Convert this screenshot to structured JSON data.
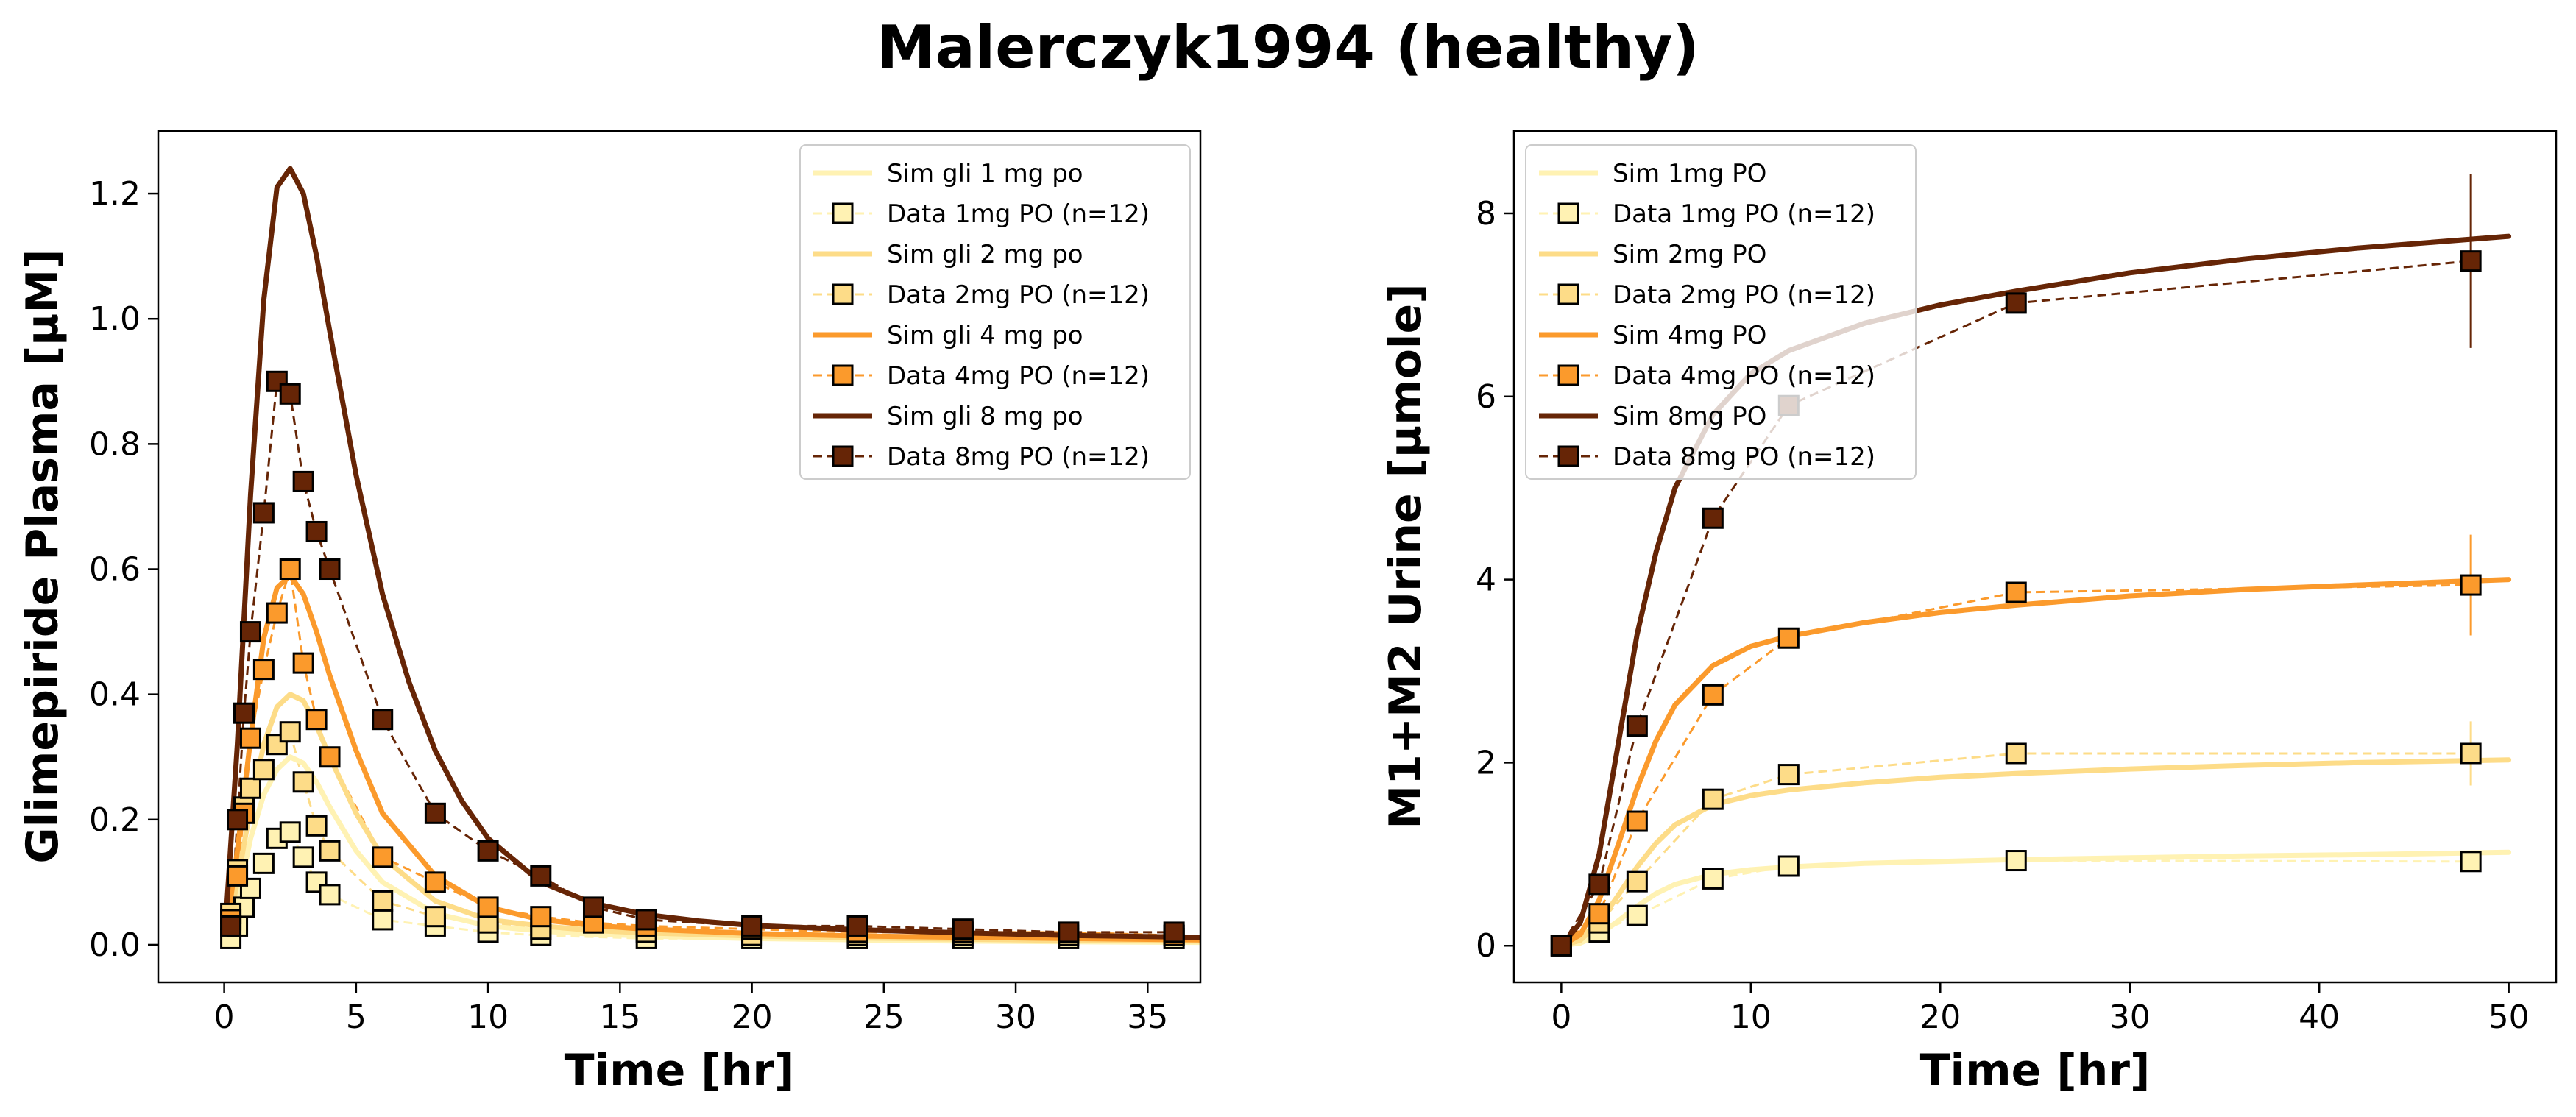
{
  "figure": {
    "title": "Malerczyk1994 (healthy)"
  },
  "chart_data": [
    {
      "type": "line",
      "xlabel": "Time [hr]",
      "ylabel": "Glimepiride Plasma [µM]",
      "xlim": [
        -2.5,
        37
      ],
      "ylim": [
        -0.06,
        1.3
      ],
      "xticks": [
        0,
        5,
        10,
        15,
        20,
        25,
        30,
        35
      ],
      "yticks": [
        0.0,
        0.2,
        0.4,
        0.6,
        0.8,
        1.0,
        1.2
      ],
      "legend_position": "upper right",
      "legend": [
        {
          "label": "Sim gli 1 mg po",
          "kind": "sim",
          "color": "#fff2b3"
        },
        {
          "label": "Data 1mg PO (n=12)",
          "kind": "data",
          "color": "#fff2b3"
        },
        {
          "label": "Sim gli 2 mg po",
          "kind": "sim",
          "color": "#fddc88"
        },
        {
          "label": "Data 2mg PO (n=12)",
          "kind": "data",
          "color": "#fddc88"
        },
        {
          "label": "Sim gli 4 mg po",
          "kind": "sim",
          "color": "#fb9a2c"
        },
        {
          "label": "Data 4mg PO (n=12)",
          "kind": "data",
          "color": "#fb9a2c"
        },
        {
          "label": "Sim gli 8 mg po",
          "kind": "sim",
          "color": "#662506"
        },
        {
          "label": "Data 8mg PO (n=12)",
          "kind": "data",
          "color": "#662506"
        }
      ],
      "sims": [
        {
          "name": "Sim gli 1 mg po",
          "color": "#fff2b3",
          "x": [
            0,
            0.5,
            1,
            1.5,
            2,
            2.5,
            3,
            3.5,
            4,
            5,
            6,
            8,
            10,
            12,
            14,
            16,
            20,
            24,
            28,
            32,
            37
          ],
          "y": [
            0,
            0.07,
            0.17,
            0.24,
            0.28,
            0.3,
            0.29,
            0.26,
            0.22,
            0.15,
            0.1,
            0.05,
            0.03,
            0.022,
            0.017,
            0.014,
            0.01,
            0.008,
            0.006,
            0.005,
            0.004
          ]
        },
        {
          "name": "Sim gli 2 mg po",
          "color": "#fddc88",
          "x": [
            0,
            0.5,
            1,
            1.5,
            2,
            2.5,
            3,
            3.5,
            4,
            5,
            6,
            8,
            10,
            12,
            14,
            16,
            20,
            24,
            28,
            32,
            37
          ],
          "y": [
            0,
            0.1,
            0.22,
            0.32,
            0.38,
            0.4,
            0.39,
            0.35,
            0.3,
            0.21,
            0.14,
            0.07,
            0.04,
            0.03,
            0.023,
            0.019,
            0.014,
            0.011,
            0.009,
            0.007,
            0.006
          ]
        },
        {
          "name": "Sim gli 4 mg po",
          "color": "#fb9a2c",
          "x": [
            0,
            0.5,
            1,
            1.5,
            2,
            2.5,
            3,
            3.5,
            4,
            5,
            6,
            8,
            10,
            12,
            14,
            16,
            20,
            24,
            28,
            32,
            37
          ],
          "y": [
            0,
            0.15,
            0.33,
            0.49,
            0.57,
            0.59,
            0.56,
            0.5,
            0.43,
            0.31,
            0.21,
            0.11,
            0.06,
            0.04,
            0.031,
            0.025,
            0.018,
            0.014,
            0.012,
            0.01,
            0.008
          ]
        },
        {
          "name": "Sim gli 8 mg po",
          "color": "#662506",
          "x": [
            0,
            0.5,
            1,
            1.5,
            2,
            2.5,
            3,
            3.5,
            4,
            5,
            6,
            7,
            8,
            9,
            10,
            12,
            14,
            16,
            18,
            20,
            24,
            28,
            32,
            37
          ],
          "y": [
            0,
            0.32,
            0.72,
            1.03,
            1.21,
            1.24,
            1.2,
            1.1,
            0.98,
            0.75,
            0.56,
            0.42,
            0.31,
            0.23,
            0.17,
            0.1,
            0.066,
            0.048,
            0.038,
            0.031,
            0.024,
            0.019,
            0.015,
            0.012
          ]
        }
      ],
      "data": [
        {
          "name": "Data 1mg PO (n=12)",
          "color": "#fff2b3",
          "x": [
            0.25,
            0.5,
            0.75,
            1,
            1.5,
            2,
            2.5,
            3,
            3.5,
            4,
            6,
            8,
            10,
            12,
            16,
            20,
            24,
            28,
            32,
            36
          ],
          "y": [
            0.01,
            0.03,
            0.06,
            0.09,
            0.13,
            0.17,
            0.18,
            0.14,
            0.1,
            0.08,
            0.04,
            0.03,
            0.02,
            0.015,
            0.01,
            0.01,
            0.01,
            0.01,
            0.01,
            0.01
          ]
        },
        {
          "name": "Data 2mg PO (n=12)",
          "color": "#fddc88",
          "x": [
            0.25,
            0.5,
            0.75,
            1,
            1.5,
            2,
            2.5,
            3,
            3.5,
            4,
            6,
            8,
            10,
            12,
            16,
            20,
            24,
            28,
            32,
            36
          ],
          "y": [
            0.05,
            0.12,
            0.22,
            0.25,
            0.28,
            0.32,
            0.34,
            0.26,
            0.19,
            0.15,
            0.07,
            0.045,
            0.035,
            0.025,
            0.02,
            0.015,
            0.015,
            0.015,
            0.015,
            0.015
          ]
        },
        {
          "name": "Data 4mg PO (n=12)",
          "color": "#fb9a2c",
          "x": [
            0.25,
            0.5,
            0.75,
            1,
            1.5,
            2,
            2.5,
            3,
            3.5,
            4,
            6,
            8,
            10,
            12,
            14,
            16,
            20,
            24,
            28,
            32,
            36
          ],
          "y": [
            0.04,
            0.11,
            0.21,
            0.33,
            0.44,
            0.53,
            0.6,
            0.45,
            0.36,
            0.3,
            0.14,
            0.1,
            0.06,
            0.045,
            0.035,
            0.03,
            0.025,
            0.02,
            0.02,
            0.02,
            0.015
          ]
        },
        {
          "name": "Data 8mg PO (n=12)",
          "color": "#662506",
          "x": [
            0.25,
            0.5,
            0.75,
            1,
            1.5,
            2,
            2.5,
            3,
            3.5,
            4,
            6,
            8,
            10,
            12,
            14,
            16,
            20,
            24,
            28,
            32,
            36
          ],
          "y": [
            0.03,
            0.2,
            0.37,
            0.5,
            0.69,
            0.9,
            0.88,
            0.74,
            0.66,
            0.6,
            0.36,
            0.21,
            0.15,
            0.11,
            0.06,
            0.04,
            0.03,
            0.03,
            0.025,
            0.02,
            0.02
          ]
        }
      ]
    },
    {
      "type": "line",
      "xlabel": "Time [hr]",
      "ylabel": "M1+M2 Urine [µmole]",
      "xlim": [
        -2.5,
        52.5
      ],
      "ylim": [
        -0.4,
        8.9
      ],
      "xticks": [
        0,
        10,
        20,
        30,
        40,
        50
      ],
      "yticks": [
        0,
        2,
        4,
        6,
        8
      ],
      "legend_position": "upper left",
      "legend": [
        {
          "label": "Sim 1mg PO",
          "kind": "sim",
          "color": "#fff2b3"
        },
        {
          "label": "Data 1mg PO (n=12)",
          "kind": "data",
          "color": "#fff2b3"
        },
        {
          "label": "Sim 2mg PO",
          "kind": "sim",
          "color": "#fddc88"
        },
        {
          "label": "Data 2mg PO (n=12)",
          "kind": "data",
          "color": "#fddc88"
        },
        {
          "label": "Sim 4mg PO",
          "kind": "sim",
          "color": "#fb9a2c"
        },
        {
          "label": "Data 4mg PO (n=12)",
          "kind": "data",
          "color": "#fb9a2c"
        },
        {
          "label": "Sim 8mg PO",
          "kind": "sim",
          "color": "#662506"
        },
        {
          "label": "Data 8mg PO (n=12)",
          "kind": "data",
          "color": "#662506"
        }
      ],
      "sims": [
        {
          "name": "Sim 1mg PO",
          "color": "#fff2b3",
          "x": [
            0,
            1,
            2,
            3,
            4,
            5,
            6,
            8,
            10,
            12,
            16,
            20,
            24,
            30,
            36,
            42,
            50
          ],
          "y": [
            0,
            0.03,
            0.12,
            0.27,
            0.43,
            0.57,
            0.67,
            0.78,
            0.83,
            0.86,
            0.9,
            0.92,
            0.94,
            0.96,
            0.98,
            0.995,
            1.02
          ]
        },
        {
          "name": "Sim 2mg PO",
          "color": "#fddc88",
          "x": [
            0,
            1,
            2,
            3,
            4,
            5,
            6,
            8,
            10,
            12,
            16,
            20,
            24,
            30,
            36,
            42,
            50
          ],
          "y": [
            0,
            0.06,
            0.25,
            0.55,
            0.86,
            1.12,
            1.32,
            1.54,
            1.64,
            1.7,
            1.78,
            1.84,
            1.88,
            1.93,
            1.97,
            2.0,
            2.03
          ]
        },
        {
          "name": "Sim 4mg PO",
          "color": "#fb9a2c",
          "x": [
            0,
            1,
            2,
            3,
            4,
            5,
            6,
            8,
            10,
            12,
            16,
            20,
            24,
            30,
            36,
            42,
            50
          ],
          "y": [
            0,
            0.12,
            0.5,
            1.1,
            1.72,
            2.24,
            2.63,
            3.06,
            3.27,
            3.38,
            3.53,
            3.64,
            3.72,
            3.82,
            3.89,
            3.94,
            4.0
          ]
        },
        {
          "name": "Sim 8mg PO",
          "color": "#662506",
          "x": [
            0,
            1,
            2,
            3,
            4,
            5,
            6,
            8,
            10,
            12,
            16,
            20,
            24,
            30,
            36,
            42,
            50
          ],
          "y": [
            0,
            0.25,
            1.0,
            2.2,
            3.4,
            4.3,
            5.0,
            5.8,
            6.25,
            6.5,
            6.8,
            7.0,
            7.15,
            7.35,
            7.5,
            7.62,
            7.75
          ]
        }
      ],
      "data": [
        {
          "name": "Data 1mg PO (n=12)",
          "color": "#fff2b3",
          "x": [
            0,
            2,
            4,
            8,
            12,
            24,
            48
          ],
          "y": [
            0,
            0.15,
            0.33,
            0.73,
            0.87,
            0.93,
            0.92
          ],
          "err": [
            0,
            0,
            0,
            0,
            0,
            0,
            0.1
          ]
        },
        {
          "name": "Data 2mg PO (n=12)",
          "color": "#fddc88",
          "x": [
            0,
            2,
            4,
            8,
            12,
            24,
            48
          ],
          "y": [
            0,
            0.25,
            0.7,
            1.6,
            1.87,
            2.1,
            2.1
          ],
          "err": [
            0,
            0,
            0,
            0,
            0,
            0,
            0.35
          ]
        },
        {
          "name": "Data 4mg PO (n=12)",
          "color": "#fb9a2c",
          "x": [
            0,
            2,
            4,
            8,
            12,
            24,
            48
          ],
          "y": [
            0,
            0.35,
            1.36,
            2.74,
            3.36,
            3.86,
            3.94
          ],
          "err": [
            0,
            0,
            0,
            0,
            0,
            0,
            0.55
          ]
        },
        {
          "name": "Data 8mg PO (n=12)",
          "color": "#662506",
          "x": [
            0,
            2,
            4,
            8,
            12,
            24,
            48
          ],
          "y": [
            0,
            0.67,
            2.4,
            4.67,
            5.9,
            7.02,
            7.48
          ],
          "err": [
            0,
            0,
            0,
            0,
            0,
            0,
            0.95
          ]
        }
      ]
    }
  ]
}
